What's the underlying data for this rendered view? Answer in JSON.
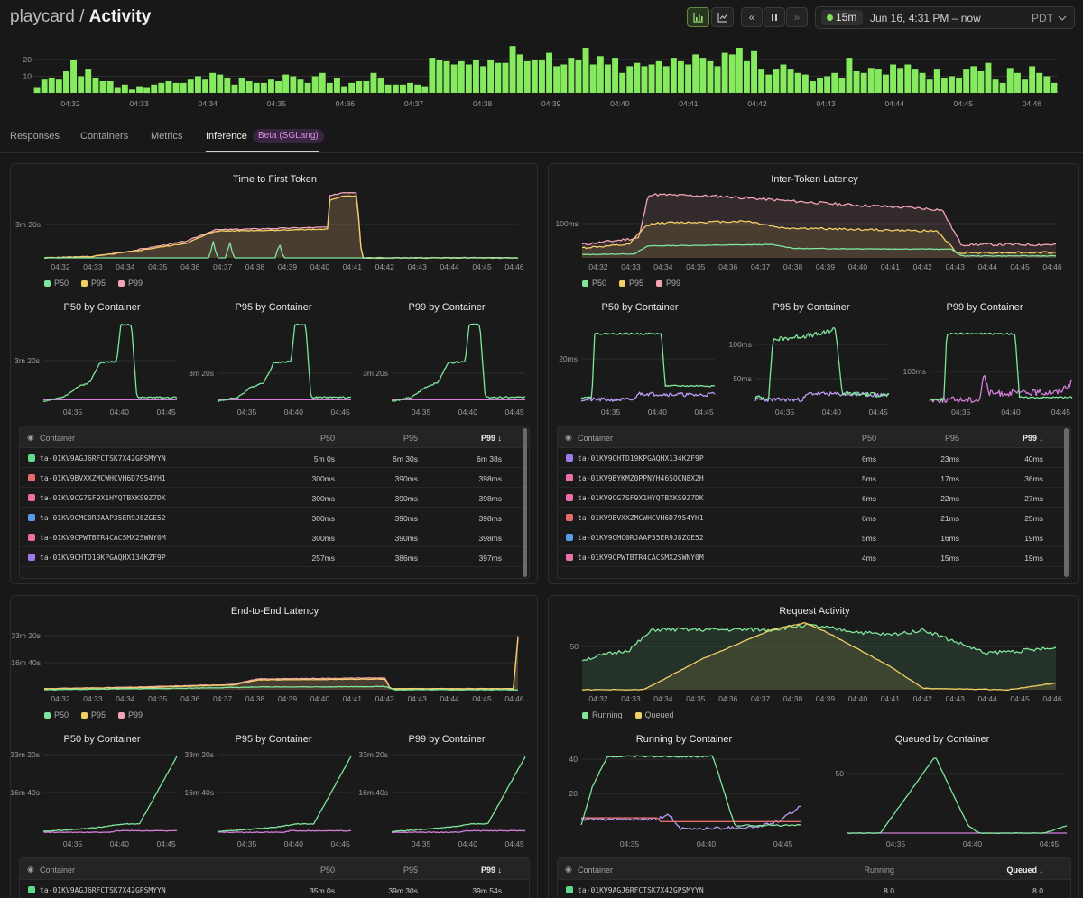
{
  "header": {
    "app": "playcard",
    "separator": "/",
    "page": "Activity",
    "range_badge": "15m",
    "range_text": "Jun 16, 4:31 PM – now",
    "timezone": "PDT",
    "icons": [
      "bar-chart-icon",
      "line-chart-icon",
      "skip-back-icon",
      "pause-icon",
      "skip-forward-icon",
      "chevron-down-icon"
    ]
  },
  "top_histogram": {
    "y_ticks": [
      "20",
      "10"
    ],
    "x_ticks": [
      "04:32",
      "04:33",
      "04:34",
      "04:35",
      "04:36",
      "04:37",
      "04:38",
      "04:39",
      "04:40",
      "04:41",
      "04:42",
      "04:43",
      "04:44",
      "04:45",
      "04:46"
    ],
    "values": [
      3,
      8,
      9,
      8,
      13,
      20,
      10,
      14,
      9,
      7,
      7,
      3,
      5,
      2,
      4,
      3,
      5,
      6,
      7,
      6,
      6,
      8,
      10,
      8,
      12,
      11,
      9,
      5,
      9,
      7,
      6,
      6,
      8,
      7,
      11,
      10,
      8,
      6,
      10,
      12,
      6,
      9,
      4,
      6,
      7,
      7,
      12,
      9,
      5,
      5,
      5,
      6,
      5,
      4,
      21,
      20,
      19,
      17,
      19,
      17,
      20,
      16,
      20,
      18,
      18,
      28,
      23,
      19,
      20,
      20,
      24,
      16,
      17,
      21,
      20,
      27,
      17,
      22,
      17,
      21,
      12,
      16,
      18,
      16,
      17,
      19,
      16,
      21,
      19,
      17,
      23,
      21,
      19,
      16,
      24,
      23,
      27,
      19,
      25,
      14,
      11,
      14,
      17,
      14,
      12,
      11,
      7,
      9,
      10,
      12,
      9,
      21,
      13,
      12,
      15,
      14,
      11,
      17,
      15,
      17,
      14,
      12,
      8,
      14,
      9,
      10,
      9,
      14,
      16,
      13,
      18,
      8,
      6,
      15,
      12,
      8,
      16,
      12,
      10,
      6
    ]
  },
  "tabs": [
    {
      "label": "Responses"
    },
    {
      "label": "Containers"
    },
    {
      "label": "Metrics"
    },
    {
      "label": "Inference",
      "badge": "Beta (SGLang)"
    }
  ],
  "colors": {
    "green": "#7ee59a",
    "yellow": "#f2cf63",
    "pink": "#f2a3b4",
    "magenta": "#d27ed9",
    "lilac": "#b99bf0",
    "hist": "#86ea5f"
  },
  "time_axis": [
    "04:32",
    "04:33",
    "04:34",
    "04:35",
    "04:36",
    "04:37",
    "04:38",
    "04:39",
    "04:40",
    "04:41",
    "04:42",
    "04:43",
    "04:44",
    "04:45",
    "04:46"
  ],
  "small_axis": [
    "04:35",
    "04:40",
    "04:45"
  ],
  "panels": {
    "ttft": {
      "title": "Time to First Token",
      "y_tick": "3m 20s",
      "legend": [
        "P50",
        "P95",
        "P99"
      ],
      "small_titles": [
        "P50 by Container",
        "P95 by Container",
        "P99 by Container"
      ],
      "small_y_tick": "3m 20s",
      "table": {
        "headers": [
          "Container",
          "P50",
          "P95",
          "P99 ↓"
        ],
        "rows": [
          {
            "id": "ta-01KV9AGJ6RFCTSK7X42GPSMYYN",
            "c": "#5fd98a",
            "v": [
              "5m 0s",
              "6m 30s",
              "6m 38s"
            ]
          },
          {
            "id": "ta-01KV9BVXXZMCWHCVH6D7954YH1",
            "c": "#e66b6b",
            "v": [
              "300ms",
              "390ms",
              "398ms"
            ]
          },
          {
            "id": "ta-01KV9CG7SF9X1HYQTBXKS9Z7DK",
            "c": "#ec6fa8",
            "v": [
              "300ms",
              "390ms",
              "398ms"
            ]
          },
          {
            "id": "ta-01KV9CMC0RJAAP35ER9J8ZGE52",
            "c": "#5a9be8",
            "v": [
              "300ms",
              "390ms",
              "398ms"
            ]
          },
          {
            "id": "ta-01KV9CPWTBTR4CACSMX2SWNY0M",
            "c": "#ec6fa8",
            "v": [
              "300ms",
              "390ms",
              "398ms"
            ]
          },
          {
            "id": "ta-01KV9CHTD19KPGAQHX134KZF9P",
            "c": "#9c7be8",
            "v": [
              "257ms",
              "386ms",
              "397ms"
            ]
          }
        ]
      }
    },
    "itl": {
      "title": "Inter-Token Latency",
      "y_tick": "100ms",
      "legend": [
        "P50",
        "P95",
        "P99"
      ],
      "small_titles": [
        "P50 by Container",
        "P95 by Container",
        "P99 by Container"
      ],
      "small_y_ticks": [
        [
          "20ms"
        ],
        [
          "100ms",
          "50ms"
        ],
        [
          "100ms"
        ]
      ],
      "table": {
        "headers": [
          "Container",
          "P50",
          "P95",
          "P99 ↓"
        ],
        "rows": [
          {
            "id": "ta-01KV9CHTD19KPGAQHX134KZF9P",
            "c": "#9c7be8",
            "v": [
              "6ms",
              "23ms",
              "40ms"
            ]
          },
          {
            "id": "ta-01KV9BYKMZ0PPNYH46SQCN8X2H",
            "c": "#ec6fa8",
            "v": [
              "5ms",
              "17ms",
              "36ms"
            ]
          },
          {
            "id": "ta-01KV9CG7SF9X1HYQTBXKS9Z7DK",
            "c": "#ec6fa8",
            "v": [
              "6ms",
              "22ms",
              "27ms"
            ]
          },
          {
            "id": "ta-01KV9BVXXZMCWHCVH6D7954YH1",
            "c": "#e66b6b",
            "v": [
              "6ms",
              "21ms",
              "25ms"
            ]
          },
          {
            "id": "ta-01KV9CMC0RJAAP35ER9J8ZGE52",
            "c": "#5a9be8",
            "v": [
              "5ms",
              "16ms",
              "19ms"
            ]
          },
          {
            "id": "ta-01KV9CPWTBTR4CACSMX2SWNY0M",
            "c": "#ec6fa8",
            "v": [
              "4ms",
              "15ms",
              "19ms"
            ]
          }
        ]
      }
    },
    "e2e": {
      "title": "End-to-End Latency",
      "y_ticks": [
        "33m 20s",
        "16m 40s"
      ],
      "legend": [
        "P50",
        "P95",
        "P99"
      ],
      "small_titles": [
        "P50 by Container",
        "P95 by Container",
        "P99 by Container"
      ],
      "small_y_ticks": [
        "33m 20s",
        "16m 40s"
      ],
      "table": {
        "headers": [
          "Container",
          "P50",
          "P95",
          "P99 ↓"
        ],
        "rows": [
          {
            "id": "ta-01KV9AGJ6RFCTSK7X42GPSMYYN",
            "c": "#5fd98a",
            "v": [
              "35m 0s",
              "39m 30s",
              "39m 54s"
            ]
          }
        ]
      }
    },
    "req": {
      "title": "Request Activity",
      "y_tick": "50",
      "legend": [
        "Running",
        "Queued"
      ],
      "small_titles": [
        "Running by Container",
        "Queued by Container"
      ],
      "small_y_ticks": [
        [
          "40",
          "20"
        ],
        [
          "50"
        ]
      ],
      "table": {
        "headers": [
          "Container",
          "Running",
          "Queued ↓"
        ],
        "rows": [
          {
            "id": "ta-01KV9AGJ6RFCTSK7X42GPSMYYN",
            "c": "#5fd98a",
            "v": [
              "8.0",
              "8.0"
            ]
          }
        ]
      }
    }
  }
}
